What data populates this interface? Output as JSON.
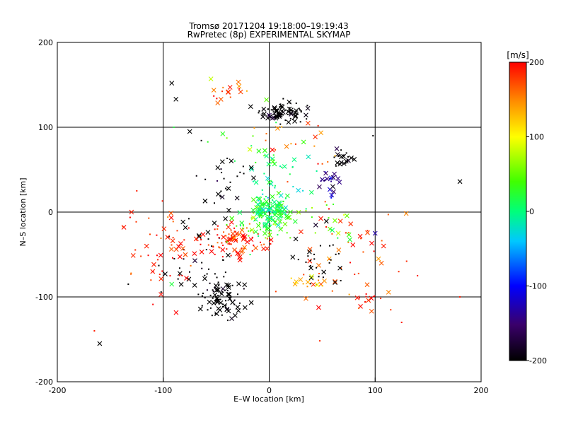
{
  "chart_data": {
    "type": "scatter",
    "title": "Tromsø 20171204 19:18:00–19:19:43",
    "subtitle": "RwPretec (8p) EXPERIMENTAL SKYMAP",
    "xlabel": "E–W location [km]",
    "ylabel": "N–S location [km]",
    "xlim": [
      -200,
      200
    ],
    "ylim": [
      -200,
      200
    ],
    "xticks": [
      -200,
      -100,
      0,
      100,
      200
    ],
    "yticks": [
      -200,
      -100,
      0,
      100,
      200
    ],
    "grid": true,
    "colorbar": {
      "unit_label": "[m/s]",
      "min": -200,
      "max": 200,
      "ticks": [
        200,
        100,
        0,
        -100,
        -200
      ]
    },
    "marker_kinds": [
      "cross",
      "dot"
    ],
    "clusters": [
      {
        "x": 12,
        "y": 118,
        "sx": 12,
        "sy": 6,
        "n": 90,
        "v": -220
      },
      {
        "x": -40,
        "y": 140,
        "sx": 10,
        "sy": 6,
        "n": 16,
        "v": 170
      },
      {
        "x": 70,
        "y": 65,
        "sx": 6,
        "sy": 5,
        "n": 22,
        "v": -220
      },
      {
        "x": 58,
        "y": 35,
        "sx": 6,
        "sy": 8,
        "n": 22,
        "v": -140
      },
      {
        "x": -45,
        "y": -100,
        "sx": 10,
        "sy": 12,
        "n": 80,
        "v": -220
      },
      {
        "x": -65,
        "y": -55,
        "sx": 18,
        "sy": 25,
        "n": 40,
        "v": -220
      },
      {
        "x": -30,
        "y": -35,
        "sx": 14,
        "sy": 10,
        "n": 90,
        "v": 190
      },
      {
        "x": 0,
        "y": 2,
        "sx": 8,
        "sy": 8,
        "n": 120,
        "v": 15
      },
      {
        "x": -10,
        "y": -20,
        "sx": 15,
        "sy": 10,
        "n": 50,
        "v": 40
      },
      {
        "x": 5,
        "y": 35,
        "sx": 20,
        "sy": 25,
        "n": 45,
        "v": 0
      },
      {
        "x": -95,
        "y": -40,
        "sx": 18,
        "sy": 30,
        "n": 60,
        "v": 190
      },
      {
        "x": 70,
        "y": -50,
        "sx": 25,
        "sy": 40,
        "n": 55,
        "v": 180
      },
      {
        "x": 50,
        "y": -60,
        "sx": 12,
        "sy": 18,
        "n": 30,
        "v": -220
      },
      {
        "x": 40,
        "y": -85,
        "sx": 10,
        "sy": 6,
        "n": 12,
        "v": 120
      },
      {
        "x": -40,
        "y": 40,
        "sx": 12,
        "sy": 18,
        "n": 30,
        "v": -220
      },
      {
        "x": 30,
        "y": 80,
        "sx": 25,
        "sy": 15,
        "n": 20,
        "v": 160
      },
      {
        "x": 60,
        "y": -10,
        "sx": 15,
        "sy": 15,
        "n": 15,
        "v": 40
      },
      {
        "x": 95,
        "y": -100,
        "sx": 6,
        "sy": 8,
        "n": 10,
        "v": 190
      },
      {
        "x": -20,
        "y": 75,
        "sx": 20,
        "sy": 15,
        "n": 15,
        "v": 30
      }
    ],
    "points": [
      {
        "x": -160,
        "y": -155,
        "v": -220,
        "m": "cross"
      },
      {
        "x": -165,
        "y": -140,
        "v": 190,
        "m": "dot"
      },
      {
        "x": -133,
        "y": -85,
        "v": -220,
        "m": "dot"
      },
      {
        "x": 180,
        "y": 36,
        "v": -220,
        "m": "cross"
      },
      {
        "x": 180,
        "y": -100,
        "v": 190,
        "m": "dot"
      },
      {
        "x": 125,
        "y": -130,
        "v": 190,
        "m": "dot"
      },
      {
        "x": 140,
        "y": -75,
        "v": 190,
        "m": "dot"
      },
      {
        "x": -92,
        "y": 152,
        "v": -220,
        "m": "cross"
      },
      {
        "x": -88,
        "y": 133,
        "v": -220,
        "m": "cross"
      },
      {
        "x": -55,
        "y": 157,
        "v": 80,
        "m": "cross"
      },
      {
        "x": -90,
        "y": 100,
        "v": 20,
        "m": "dot"
      },
      {
        "x": -75,
        "y": 95,
        "v": -220,
        "m": "cross"
      },
      {
        "x": 98,
        "y": 90,
        "v": -220,
        "m": "dot"
      },
      {
        "x": 100,
        "y": -25,
        "v": -130,
        "m": "cross"
      },
      {
        "x": 108,
        "y": -40,
        "v": 190,
        "m": "cross"
      },
      {
        "x": -92,
        "y": -85,
        "v": 20,
        "m": "cross"
      },
      {
        "x": -110,
        "y": -70,
        "v": 190,
        "m": "cross"
      },
      {
        "x": -130,
        "y": 0,
        "v": 190,
        "m": "cross"
      },
      {
        "x": -125,
        "y": 25,
        "v": 190,
        "m": "dot"
      }
    ]
  }
}
